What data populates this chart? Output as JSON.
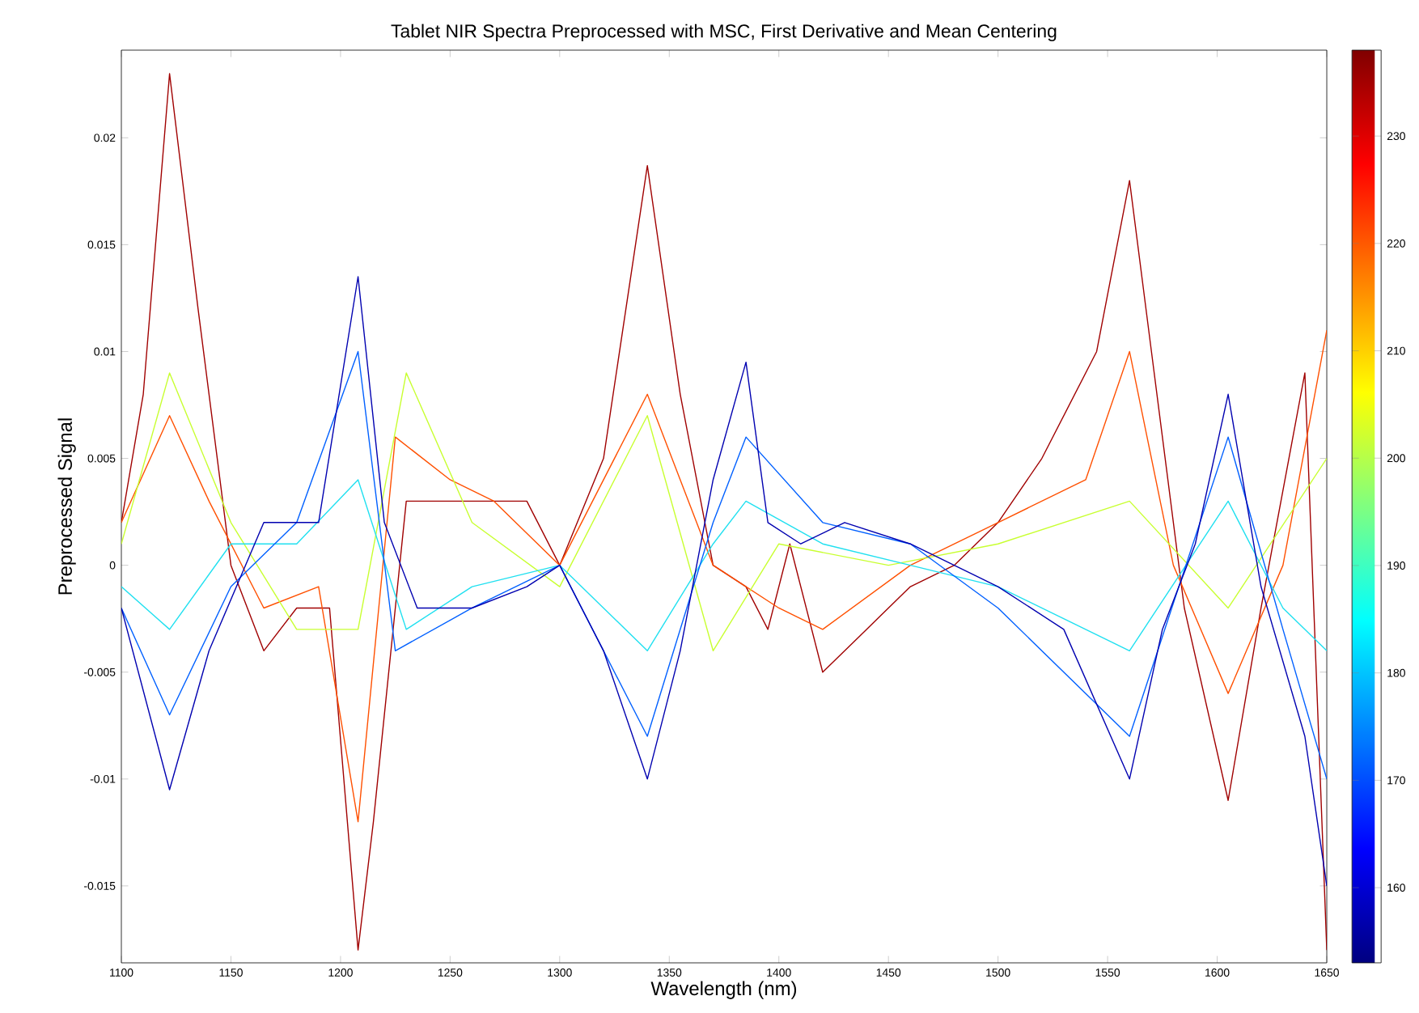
{
  "chart_data": {
    "type": "line",
    "title": "Tablet NIR Spectra Preprocessed with MSC, First Derivative and Mean Centering",
    "xlabel": "Wavelength (nm)",
    "ylabel": "Preprocessed Signal",
    "xlim": [
      1100,
      1650
    ],
    "xticks": [
      1100,
      1150,
      1200,
      1250,
      1300,
      1350,
      1400,
      1450,
      1500,
      1550,
      1600,
      1650
    ],
    "ylim": [
      -0.0186,
      0.0241
    ],
    "yticks": [
      -0.015,
      -0.01,
      -0.005,
      0,
      0.005,
      0.01,
      0.015,
      0.02
    ],
    "clim": [
      153,
      238
    ],
    "cticks": [
      160,
      170,
      180,
      190,
      200,
      210,
      220,
      230
    ],
    "grid": false,
    "series": [
      {
        "color": "#a00000",
        "x": [
          1100,
          1110,
          1122,
          1135,
          1150,
          1165,
          1180,
          1195,
          1208,
          1215,
          1230,
          1250,
          1270,
          1285,
          1300,
          1320,
          1340,
          1355,
          1370,
          1385,
          1395,
          1405,
          1420,
          1440,
          1460,
          1480,
          1500,
          1520,
          1545,
          1560,
          1570,
          1585,
          1605,
          1620,
          1640,
          1650
        ],
        "values": [
          0.002,
          0.008,
          0.023,
          0.012,
          0.0,
          -0.004,
          -0.002,
          -0.002,
          -0.018,
          -0.012,
          0.003,
          0.003,
          0.003,
          0.003,
          0.0,
          0.005,
          0.0187,
          0.008,
          0.0,
          -0.001,
          -0.003,
          0.001,
          -0.005,
          -0.003,
          -0.001,
          0.0,
          0.002,
          0.005,
          0.01,
          0.018,
          0.01,
          -0.002,
          -0.011,
          -0.002,
          0.009,
          -0.018
        ]
      },
      {
        "color": "#ff5000",
        "x": [
          1100,
          1122,
          1140,
          1165,
          1190,
          1208,
          1225,
          1250,
          1270,
          1300,
          1340,
          1370,
          1400,
          1420,
          1460,
          1500,
          1540,
          1560,
          1580,
          1605,
          1630,
          1650
        ],
        "values": [
          0.002,
          0.007,
          0.003,
          -0.002,
          -0.001,
          -0.012,
          0.006,
          0.004,
          0.003,
          0.0,
          0.008,
          0.0,
          -0.002,
          -0.003,
          0.0,
          0.002,
          0.004,
          0.01,
          0.0,
          -0.006,
          0.0,
          0.011
        ]
      },
      {
        "color": "#c8ff30",
        "x": [
          1100,
          1122,
          1150,
          1180,
          1208,
          1230,
          1260,
          1300,
          1340,
          1370,
          1400,
          1450,
          1500,
          1560,
          1605,
          1650
        ],
        "values": [
          0.001,
          0.009,
          0.002,
          -0.003,
          -0.003,
          0.009,
          0.002,
          -0.001,
          0.007,
          -0.004,
          0.001,
          0.0,
          0.001,
          0.003,
          -0.002,
          0.005
        ]
      },
      {
        "color": "#20e0f0",
        "x": [
          1100,
          1122,
          1150,
          1180,
          1208,
          1230,
          1260,
          1300,
          1340,
          1370,
          1385,
          1420,
          1460,
          1500,
          1560,
          1605,
          1630,
          1650
        ],
        "values": [
          -0.001,
          -0.003,
          0.001,
          0.001,
          0.004,
          -0.003,
          -0.001,
          0.0,
          -0.004,
          0.001,
          0.003,
          0.001,
          0.0,
          -0.001,
          -0.004,
          0.003,
          -0.002,
          -0.004
        ]
      },
      {
        "color": "#0060ff",
        "x": [
          1100,
          1122,
          1150,
          1180,
          1208,
          1225,
          1260,
          1300,
          1340,
          1370,
          1385,
          1420,
          1460,
          1500,
          1560,
          1605,
          1630,
          1650
        ],
        "values": [
          -0.002,
          -0.007,
          -0.001,
          0.002,
          0.01,
          -0.004,
          -0.002,
          0.0,
          -0.008,
          0.002,
          0.006,
          0.002,
          0.001,
          -0.002,
          -0.008,
          0.006,
          -0.003,
          -0.01
        ]
      },
      {
        "color": "#0000b0",
        "x": [
          1100,
          1122,
          1140,
          1165,
          1190,
          1208,
          1220,
          1235,
          1260,
          1285,
          1300,
          1320,
          1340,
          1355,
          1370,
          1385,
          1395,
          1410,
          1430,
          1460,
          1500,
          1530,
          1560,
          1575,
          1590,
          1605,
          1620,
          1640,
          1650
        ],
        "values": [
          -0.002,
          -0.0105,
          -0.004,
          0.002,
          0.002,
          0.0135,
          0.002,
          -0.002,
          -0.002,
          -0.001,
          0.0,
          -0.004,
          -0.01,
          -0.004,
          0.004,
          0.0095,
          0.002,
          0.001,
          0.002,
          0.001,
          -0.001,
          -0.003,
          -0.01,
          -0.003,
          0.001,
          0.008,
          -0.001,
          -0.008,
          -0.015
        ]
      }
    ]
  }
}
